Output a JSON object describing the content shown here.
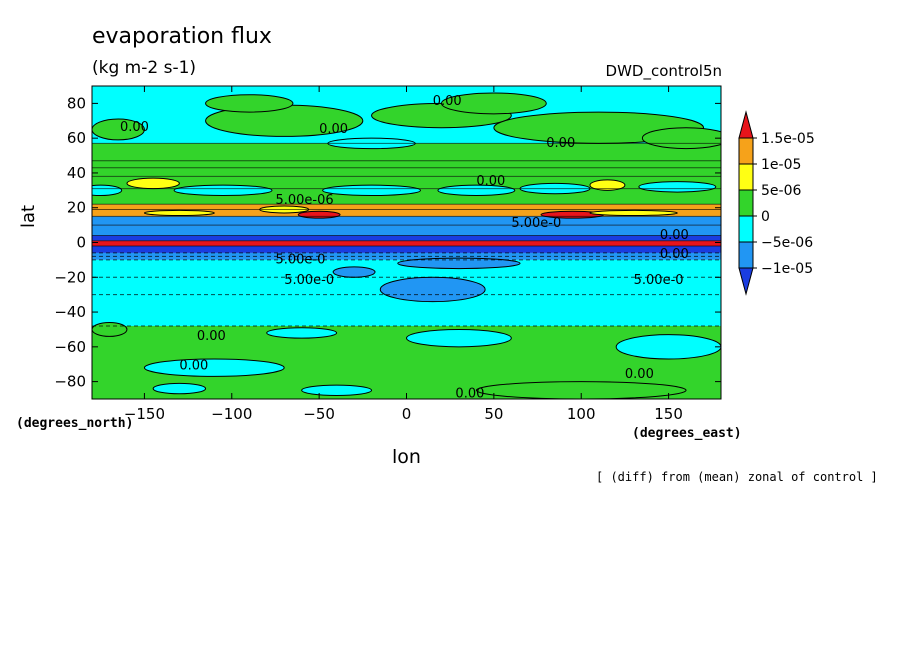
{
  "chart_data": {
    "type": "heatmap",
    "title": "evaporation flux",
    "units": "(kg m-2 s-1)",
    "run_label": "DWD_control5n",
    "xlabel": "lon",
    "ylabel": "lat",
    "x_units": "(degrees_east)",
    "y_units": "(degrees_north)",
    "note": "[ (diff) from (mean) zonal of control ]",
    "xlim": [
      -180,
      180
    ],
    "ylim": [
      -90,
      90
    ],
    "x_ticks": [
      -150,
      -100,
      -50,
      0,
      50,
      100,
      150
    ],
    "y_ticks": [
      -80,
      -60,
      -40,
      -20,
      0,
      20,
      40,
      60,
      80
    ],
    "colorbar": {
      "labels": [
        "1.5e-05",
        "1e-05",
        "5e-06",
        "0",
        "-5e-06",
        "-1e-05"
      ],
      "colors": [
        "#e8141b",
        "#f6a21a",
        "#ffff14",
        "#33d42b",
        "#00ffff",
        "#2196f3",
        "#1a3de0"
      ]
    },
    "contour_labels": [
      {
        "text": "0.00",
        "lon": -164,
        "lat": 64
      },
      {
        "text": "0.00",
        "lon": -50,
        "lat": 63
      },
      {
        "text": "0.00",
        "lon": 15,
        "lat": 79
      },
      {
        "text": "0.00",
        "lon": 80,
        "lat": 55
      },
      {
        "text": "0.00",
        "lon": 40,
        "lat": 33
      },
      {
        "text": "5.00e-06",
        "lon": -75,
        "lat": 22
      },
      {
        "text": "5.00e-0",
        "lon": 60,
        "lat": 9
      },
      {
        "text": "0.00",
        "lon": 145,
        "lat": 2
      },
      {
        "text": "0.00",
        "lon": 145,
        "lat": -9
      },
      {
        "text": "5.00e-0",
        "lon": -70,
        "lat": -24
      },
      {
        "text": "5.00e-0",
        "lon": 130,
        "lat": -24
      },
      {
        "text": "5.00e-0",
        "lon": -75,
        "lat": -12
      },
      {
        "text": "0.00",
        "lon": -120,
        "lat": -56
      },
      {
        "text": "0.00",
        "lon": -130,
        "lat": -73
      },
      {
        "text": "0.00",
        "lon": 125,
        "lat": -78
      },
      {
        "text": "0.00",
        "lon": 28,
        "lat": -89
      }
    ]
  }
}
